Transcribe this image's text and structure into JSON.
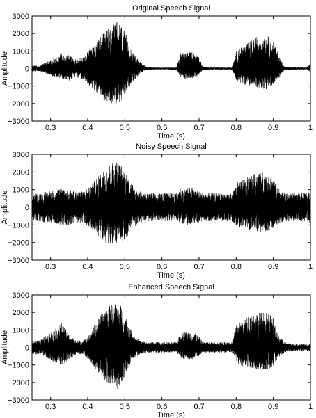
{
  "figure": {
    "background": "#ffffff",
    "line_color": "#000000"
  },
  "chart_data": [
    {
      "type": "line",
      "title": "Original Speech Signal",
      "xlabel": "Time (s)",
      "ylabel": "Amplitude",
      "xlim": [
        0.25,
        1.0
      ],
      "ylim": [
        -3000,
        3000
      ],
      "xticks": [
        0.3,
        0.4,
        0.5,
        0.6,
        0.7,
        0.8,
        0.9,
        1
      ],
      "xtick_labels": [
        "0.3",
        "0.4",
        "0.5",
        "0.6",
        "0.7",
        "0.8",
        "0.9",
        "1"
      ],
      "yticks": [
        3000,
        2000,
        1000,
        0,
        -1000,
        -2000,
        -3000
      ],
      "ytick_labels": [
        "3000",
        "2000",
        "1000",
        "0",
        "−1000",
        "−2000",
        "−3000"
      ],
      "grid": false,
      "series": [
        {
          "envelope_x": [
            0.25,
            0.27,
            0.29,
            0.31,
            0.33,
            0.35,
            0.37,
            0.39,
            0.41,
            0.43,
            0.45,
            0.47,
            0.48,
            0.49,
            0.5,
            0.52,
            0.54,
            0.56,
            0.58,
            0.6,
            0.62,
            0.64,
            0.65,
            0.66,
            0.67,
            0.68,
            0.69,
            0.7,
            0.71,
            0.73,
            0.75,
            0.77,
            0.79,
            0.8,
            0.82,
            0.84,
            0.86,
            0.88,
            0.89,
            0.9,
            0.91,
            0.93,
            0.95,
            0.97,
            0.99,
            1.0
          ],
          "envelope_max": [
            200,
            150,
            400,
            600,
            900,
            800,
            500,
            700,
            1200,
            1700,
            2200,
            2600,
            2700,
            2500,
            2100,
            1000,
            400,
            80,
            60,
            50,
            60,
            80,
            900,
            900,
            950,
            950,
            900,
            700,
            90,
            80,
            60,
            60,
            60,
            1000,
            1300,
            1600,
            1900,
            1900,
            1800,
            1600,
            1000,
            100,
            80,
            60,
            60,
            250
          ],
          "envelope_min": [
            -200,
            -150,
            -300,
            -500,
            -600,
            -700,
            -500,
            -700,
            -1100,
            -1500,
            -1900,
            -2050,
            -2100,
            -1900,
            -1500,
            -800,
            -300,
            -80,
            -60,
            -50,
            -60,
            -80,
            -500,
            -600,
            -550,
            -550,
            -500,
            -400,
            -90,
            -80,
            -60,
            -60,
            -60,
            -700,
            -900,
            -1000,
            -1100,
            -1200,
            -1100,
            -900,
            -700,
            -100,
            -80,
            -60,
            -60,
            -250
          ]
        }
      ]
    },
    {
      "type": "line",
      "title": "Noisy Speech Signal",
      "xlabel": "Time (s)",
      "ylabel": "Amplitude",
      "xlim": [
        0.25,
        1.0
      ],
      "ylim": [
        -3000,
        3000
      ],
      "xticks": [
        0.3,
        0.4,
        0.5,
        0.6,
        0.7,
        0.8,
        0.9,
        1
      ],
      "xtick_labels": [
        "0.3",
        "0.4",
        "0.5",
        "0.6",
        "0.7",
        "0.8",
        "0.9",
        "1"
      ],
      "yticks": [
        3000,
        2000,
        1000,
        0,
        -1000,
        -2000,
        -3000
      ],
      "ytick_labels": [
        "3000",
        "2000",
        "1000",
        "0",
        "−1000",
        "−2000",
        "−3000"
      ],
      "grid": false,
      "series": [
        {
          "envelope_x": [
            0.25,
            0.27,
            0.29,
            0.31,
            0.33,
            0.35,
            0.37,
            0.39,
            0.41,
            0.43,
            0.45,
            0.47,
            0.48,
            0.49,
            0.5,
            0.52,
            0.54,
            0.56,
            0.58,
            0.6,
            0.62,
            0.64,
            0.65,
            0.66,
            0.67,
            0.68,
            0.69,
            0.7,
            0.71,
            0.73,
            0.75,
            0.77,
            0.79,
            0.8,
            0.82,
            0.84,
            0.86,
            0.88,
            0.89,
            0.9,
            0.91,
            0.93,
            0.95,
            0.97,
            0.99,
            1.0
          ],
          "envelope_max": [
            800,
            800,
            900,
            1000,
            1100,
            1000,
            900,
            900,
            1300,
            1800,
            2300,
            2600,
            2600,
            2400,
            2100,
            1300,
            900,
            800,
            800,
            800,
            800,
            800,
            1100,
            1100,
            1100,
            1100,
            1000,
            900,
            800,
            800,
            800,
            800,
            800,
            1400,
            1600,
            1800,
            2000,
            2000,
            1900,
            1700,
            1200,
            800,
            800,
            800,
            800,
            900
          ],
          "envelope_min": [
            -800,
            -800,
            -900,
            -900,
            -1000,
            -1000,
            -900,
            -900,
            -1300,
            -1700,
            -2100,
            -2300,
            -2400,
            -2200,
            -1900,
            -1200,
            -900,
            -800,
            -800,
            -800,
            -800,
            -800,
            -900,
            -1000,
            -1000,
            -1000,
            -900,
            -900,
            -800,
            -800,
            -800,
            -800,
            -800,
            -1100,
            -1200,
            -1300,
            -1400,
            -1400,
            -1300,
            -1200,
            -1000,
            -800,
            -800,
            -800,
            -800,
            -900
          ]
        }
      ]
    },
    {
      "type": "line",
      "title": "Enhanced Speech Signal",
      "xlabel": "Time (s)",
      "ylabel": "Amplitude",
      "xlim": [
        0.25,
        1.0
      ],
      "ylim": [
        -3000,
        3000
      ],
      "xticks": [
        0.3,
        0.4,
        0.5,
        0.6,
        0.7,
        0.8,
        0.9,
        1
      ],
      "xtick_labels": [
        "0.3",
        "0.4",
        "0.5",
        "0.6",
        "0.7",
        "0.8",
        "0.9",
        "1"
      ],
      "yticks": [
        3000,
        2000,
        1000,
        0,
        -1000,
        -2000,
        -3000
      ],
      "ytick_labels": [
        "3000",
        "2000",
        "1000",
        "0",
        "−1000",
        "−2000",
        "−3000"
      ],
      "grid": false,
      "series": [
        {
          "envelope_x": [
            0.25,
            0.27,
            0.29,
            0.31,
            0.33,
            0.35,
            0.37,
            0.39,
            0.41,
            0.43,
            0.45,
            0.47,
            0.48,
            0.49,
            0.5,
            0.52,
            0.54,
            0.56,
            0.58,
            0.6,
            0.62,
            0.64,
            0.65,
            0.66,
            0.67,
            0.68,
            0.69,
            0.7,
            0.71,
            0.73,
            0.75,
            0.77,
            0.79,
            0.8,
            0.82,
            0.84,
            0.86,
            0.88,
            0.89,
            0.9,
            0.91,
            0.93,
            0.95,
            0.97,
            0.99,
            1.0
          ],
          "envelope_max": [
            400,
            400,
            700,
            1000,
            1400,
            700,
            400,
            400,
            1000,
            1700,
            2300,
            2500,
            2550,
            2400,
            2000,
            800,
            400,
            300,
            300,
            300,
            300,
            300,
            800,
            900,
            900,
            900,
            800,
            600,
            300,
            300,
            300,
            300,
            300,
            1300,
            1600,
            1900,
            2000,
            2000,
            1900,
            1700,
            800,
            300,
            200,
            200,
            200,
            200
          ],
          "envelope_min": [
            -400,
            -400,
            -600,
            -900,
            -1000,
            -700,
            -400,
            -400,
            -900,
            -1500,
            -2000,
            -2300,
            -2400,
            -2200,
            -1700,
            -700,
            -400,
            -300,
            -300,
            -300,
            -300,
            -300,
            -600,
            -700,
            -700,
            -700,
            -600,
            -500,
            -300,
            -300,
            -300,
            -300,
            -300,
            -900,
            -1100,
            -1200,
            -1300,
            -1300,
            -1200,
            -1100,
            -700,
            -300,
            -200,
            -200,
            -200,
            -200
          ]
        }
      ]
    }
  ]
}
